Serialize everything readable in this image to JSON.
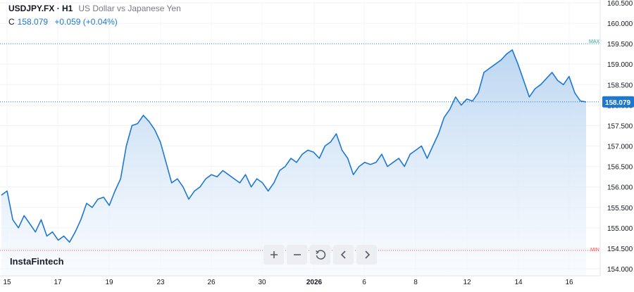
{
  "header": {
    "symbol": "USDJPY.FX · H1",
    "description": "US Dollar vs Japanese Yen",
    "close_label": "C",
    "close_value": "158.079",
    "change": "+0.059 (+0.04%)"
  },
  "brand": "InstaFintech",
  "nav": {
    "zoom_in_icon": "plus-icon",
    "zoom_out_icon": "minus-icon",
    "reset_icon": "reset-icon",
    "prev_icon": "chevron-left-icon",
    "next_icon": "chevron-right-icon"
  },
  "colors": {
    "line": "#1e78d2",
    "area_top": "#b8d4f0",
    "area_bottom": "#f5f9fe",
    "max_line": "#26a69a",
    "min_line": "#ef5350",
    "price_tag": "#1e78d2"
  },
  "chart_data": {
    "type": "area",
    "title": "USDJPY.FX · H1",
    "subtitle": "US Dollar vs Japanese Yen",
    "x_tick_labels": [
      "15",
      "17",
      "19",
      "23",
      "26",
      "30",
      "2026",
      "6",
      "8",
      "12",
      "14",
      "16"
    ],
    "y_tick_labels": [
      "154.000",
      "154.500",
      "155.000",
      "155.500",
      "156.000",
      "156.500",
      "157.000",
      "157.500",
      "158.000",
      "158.500",
      "159.000",
      "159.500",
      "160.000",
      "160.500"
    ],
    "ylim": [
      154.0,
      160.5
    ],
    "current_price": 158.079,
    "current_price_label": "158.079",
    "max_label": "MAX",
    "min_label": "MIN",
    "max_value": 159.5,
    "min_value": 154.45,
    "series": [
      {
        "values": [
          155.8,
          155.9,
          155.2,
          155.0,
          155.3,
          155.1,
          154.9,
          155.2,
          154.8,
          154.9,
          154.7,
          154.8,
          154.65,
          154.9,
          155.2,
          155.6,
          155.5,
          155.7,
          155.75,
          155.55,
          155.9,
          156.2,
          157.0,
          157.5,
          157.55,
          157.75,
          157.6,
          157.4,
          157.1,
          156.6,
          156.1,
          156.2,
          156.0,
          155.7,
          155.9,
          156.0,
          156.2,
          156.3,
          156.25,
          156.4,
          156.3,
          156.2,
          156.1,
          156.3,
          156.0,
          156.2,
          156.1,
          155.9,
          156.1,
          156.4,
          156.5,
          156.7,
          156.6,
          156.8,
          156.9,
          156.85,
          156.7,
          157.0,
          157.1,
          157.3,
          156.9,
          156.7,
          156.3,
          156.5,
          156.6,
          156.55,
          156.6,
          156.8,
          156.5,
          156.6,
          156.7,
          156.5,
          156.8,
          156.9,
          157.0,
          156.7,
          157.0,
          157.3,
          157.7,
          157.9,
          158.2,
          158.0,
          158.15,
          158.1,
          158.3,
          158.8,
          158.9,
          159.0,
          159.1,
          159.25,
          159.35,
          159.0,
          158.6,
          158.2,
          158.4,
          158.5,
          158.65,
          158.8,
          158.6,
          158.5,
          158.7,
          158.3,
          158.1,
          158.079
        ]
      }
    ]
  }
}
